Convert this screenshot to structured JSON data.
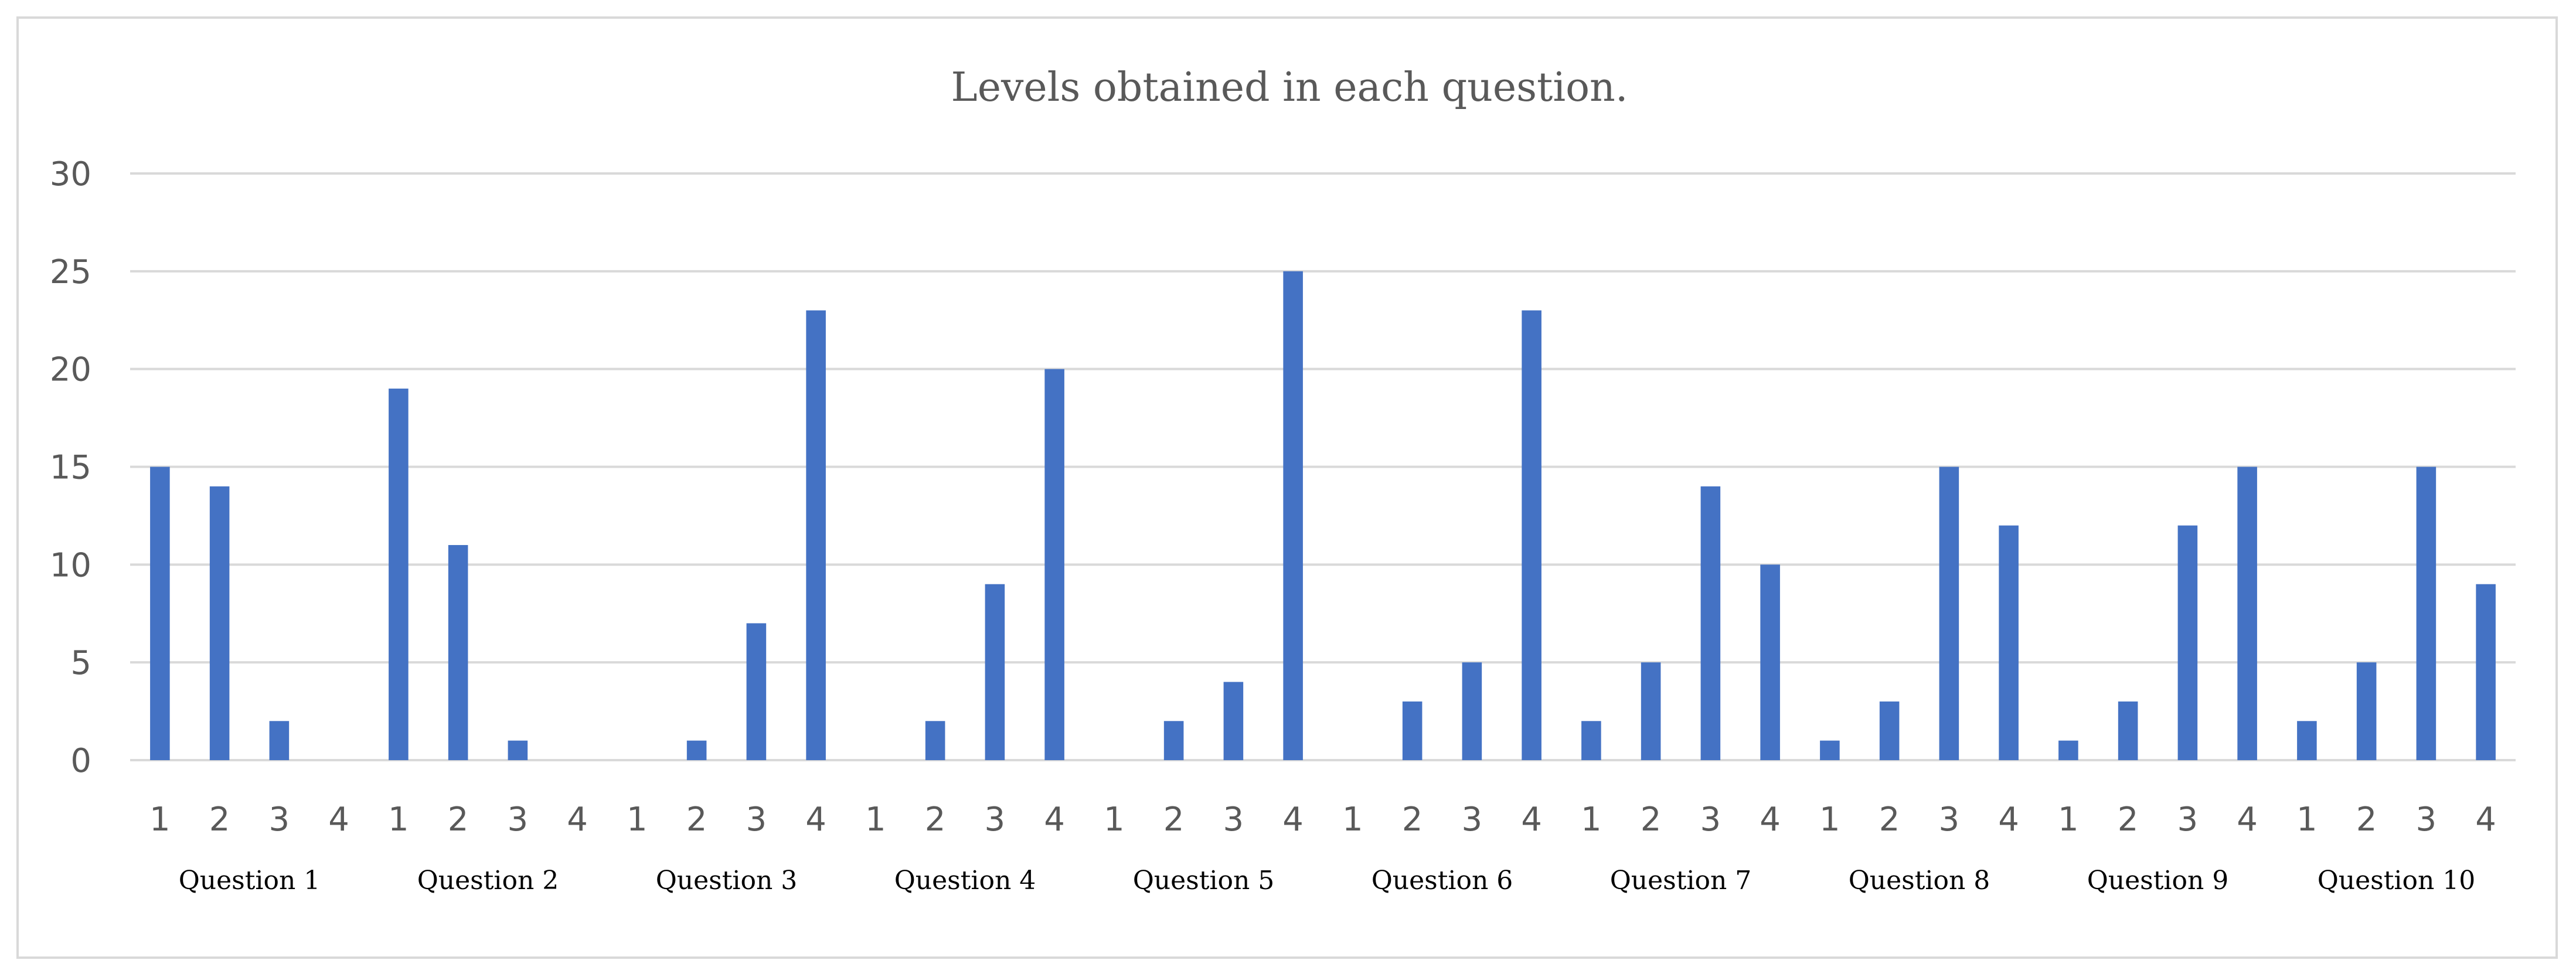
{
  "chart_data": {
    "type": "bar",
    "title": "Levels obtained in each question.",
    "xlabel": "",
    "ylabel": "",
    "ylim": [
      0,
      30
    ],
    "yticks": [
      "0",
      "5",
      "10",
      "15",
      "20",
      "25",
      "30"
    ],
    "grid": true,
    "legend": "none",
    "bar_color": "#4472c4",
    "groups": [
      {
        "label": "Question 1",
        "categories": [
          "1",
          "2",
          "3",
          "4"
        ],
        "values": [
          15,
          14,
          2,
          0
        ]
      },
      {
        "label": "Question 2",
        "categories": [
          "1",
          "2",
          "3",
          "4"
        ],
        "values": [
          19,
          11,
          1,
          0
        ]
      },
      {
        "label": "Question 3",
        "categories": [
          "1",
          "2",
          "3",
          "4"
        ],
        "values": [
          0,
          1,
          7,
          23
        ]
      },
      {
        "label": "Question 4",
        "categories": [
          "1",
          "2",
          "3",
          "4"
        ],
        "values": [
          0,
          2,
          9,
          20
        ]
      },
      {
        "label": "Question 5",
        "categories": [
          "1",
          "2",
          "3",
          "4"
        ],
        "values": [
          0,
          2,
          4,
          25
        ]
      },
      {
        "label": "Question 6",
        "categories": [
          "1",
          "2",
          "3",
          "4"
        ],
        "values": [
          0,
          3,
          5,
          23
        ]
      },
      {
        "label": "Question 7",
        "categories": [
          "1",
          "2",
          "3",
          "4"
        ],
        "values": [
          2,
          5,
          14,
          10
        ]
      },
      {
        "label": "Question 8",
        "categories": [
          "1",
          "2",
          "3",
          "4"
        ],
        "values": [
          1,
          3,
          15,
          12
        ]
      },
      {
        "label": "Question 9",
        "categories": [
          "1",
          "2",
          "3",
          "4"
        ],
        "values": [
          1,
          3,
          12,
          15
        ]
      },
      {
        "label": "Question 10",
        "categories": [
          "1",
          "2",
          "3",
          "4"
        ],
        "values": [
          2,
          5,
          15,
          9
        ]
      }
    ]
  }
}
